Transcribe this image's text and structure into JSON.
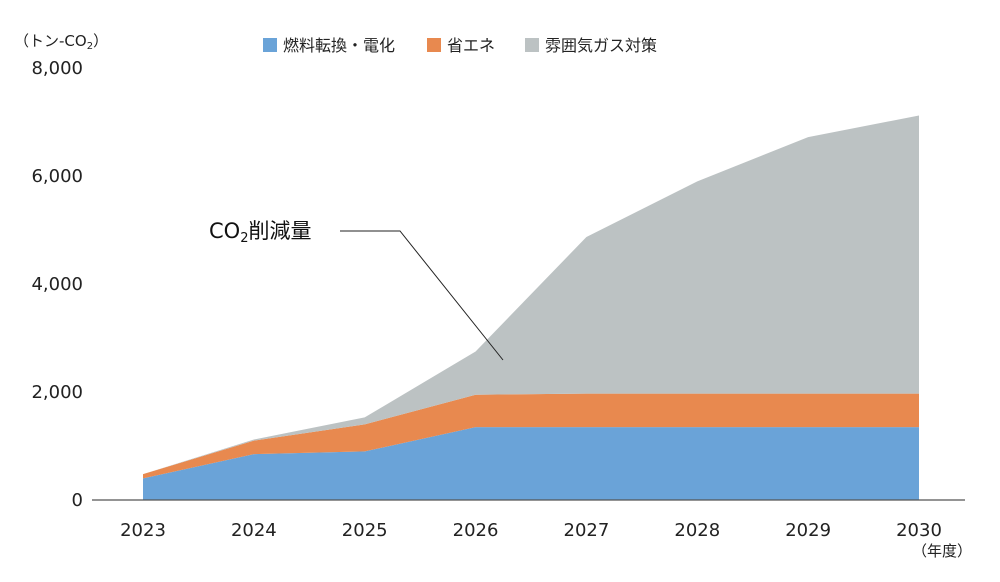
{
  "chart_data": {
    "type": "area",
    "stacked": true,
    "y_unit_label": "（トン-CO",
    "y_unit_sub": "2",
    "y_unit_close": "）",
    "x_unit_label": "（年度）",
    "categories": [
      "2023",
      "2024",
      "2025",
      "2026",
      "2027",
      "2028",
      "2029",
      "2030"
    ],
    "ylim": [
      0,
      8000
    ],
    "yticks": [
      0,
      2000,
      4000,
      6000,
      8000
    ],
    "ytick_labels": [
      "0",
      "2,000",
      "4,000",
      "6,000",
      "8,000"
    ],
    "grid": false,
    "legend_position": "top",
    "series": [
      {
        "name": "燃料転換・電化",
        "color": "#6aa3d8",
        "values": [
          400,
          850,
          900,
          1350,
          1350,
          1350,
          1350,
          1350
        ]
      },
      {
        "name": "省エネ",
        "color": "#e8894f",
        "values": [
          80,
          250,
          500,
          600,
          620,
          620,
          620,
          620
        ]
      },
      {
        "name": "雰囲気ガス対策",
        "color": "#bcc2c3",
        "values": [
          0,
          20,
          130,
          800,
          2900,
          3930,
          4750,
          5150
        ]
      }
    ],
    "annotation": {
      "text": "CO",
      "sub": "2",
      "rest": "削減量"
    }
  }
}
